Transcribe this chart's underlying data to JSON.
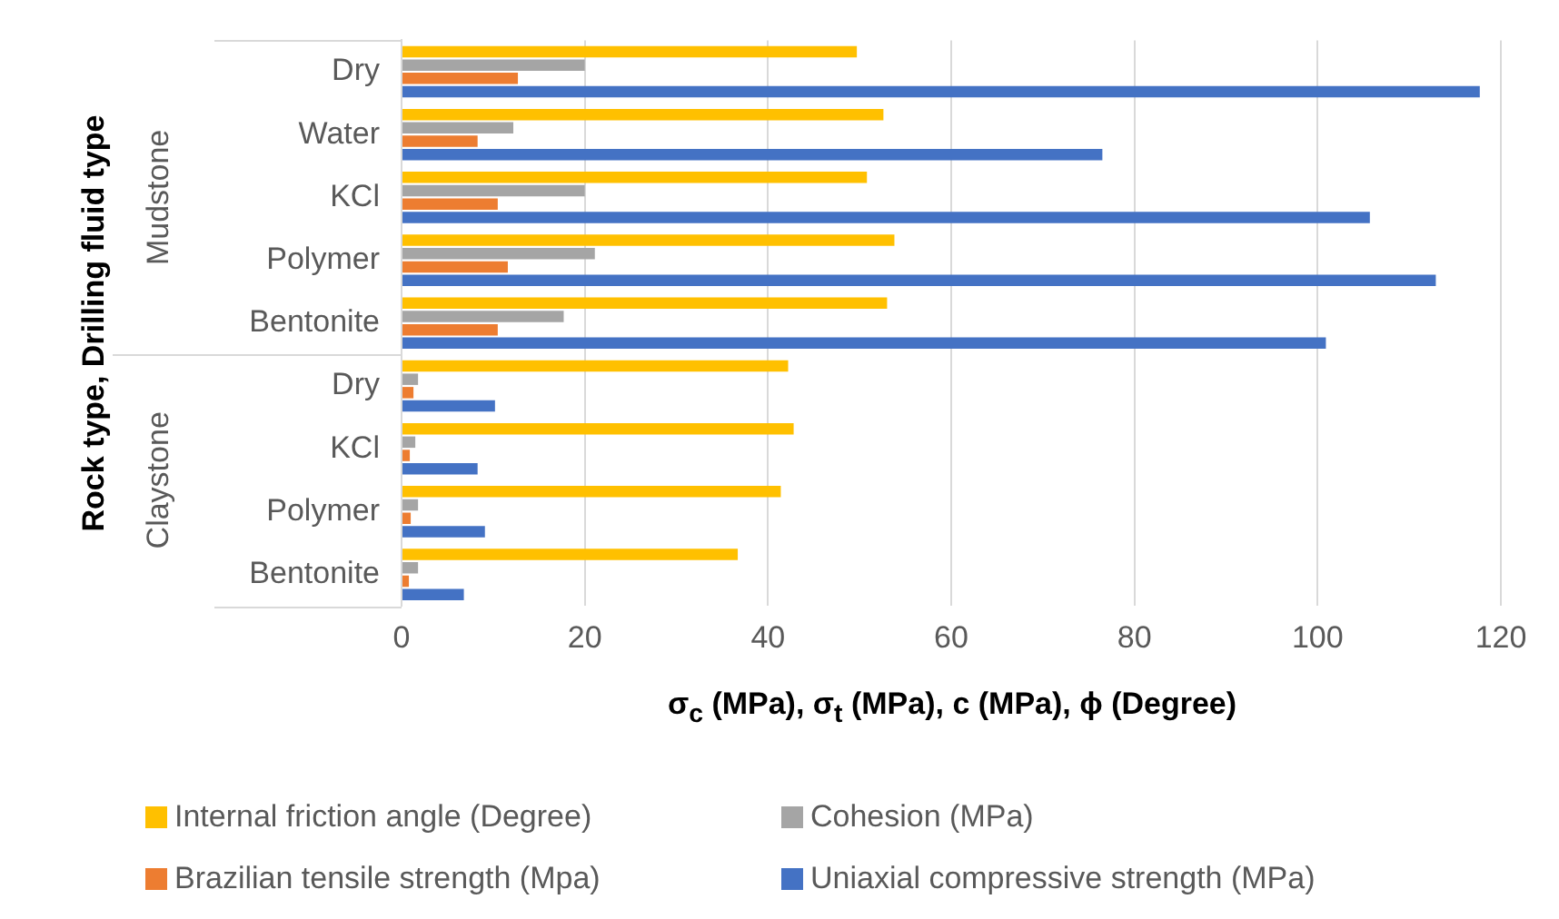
{
  "chart_data": {
    "type": "bar",
    "orientation": "horizontal",
    "ylabel": "Rock type, Drilling fluid type",
    "xlabel": "σ$_{c}$ (MPa), σ$_{t}$ (MPa), c (MPa), ϕ (Degree)",
    "categories": [
      "Dry",
      "Water",
      "KCl",
      "Polymer",
      "Bentonite",
      "Dry",
      "KCl",
      "Polymer",
      "Bentonite"
    ],
    "annotations": [
      "Mudstone",
      "Claystone"
    ],
    "series": [
      {
        "name": "Internal friction angle (Degree)",
        "color": "#ffc000",
        "values": [
          49.7,
          52.6,
          50.8,
          53.8,
          53.0,
          42.2,
          42.8,
          41.4,
          36.7
        ]
      },
      {
        "name": "Cohesion (MPa)",
        "color": "#a5a5a5",
        "values": [
          20.0,
          12.2,
          20.0,
          21.1,
          17.7,
          1.8,
          1.5,
          1.8,
          1.8
        ]
      },
      {
        "name": "Brazilian tensile strength (Mpa)",
        "color": "#ed7d31",
        "values": [
          12.7,
          8.3,
          10.5,
          11.6,
          10.5,
          1.3,
          0.9,
          1.0,
          0.8
        ]
      },
      {
        "name": "Uniaxial compressive strength (MPa)",
        "color": "#4472c4",
        "values": [
          117.7,
          76.5,
          105.7,
          112.9,
          100.9,
          10.2,
          8.3,
          9.1,
          6.8
        ]
      }
    ],
    "xlim": [
      0,
      120
    ],
    "xticks": [
      0,
      20,
      40,
      60,
      80,
      100,
      120
    ],
    "grid": "x",
    "legend": "bottom"
  }
}
